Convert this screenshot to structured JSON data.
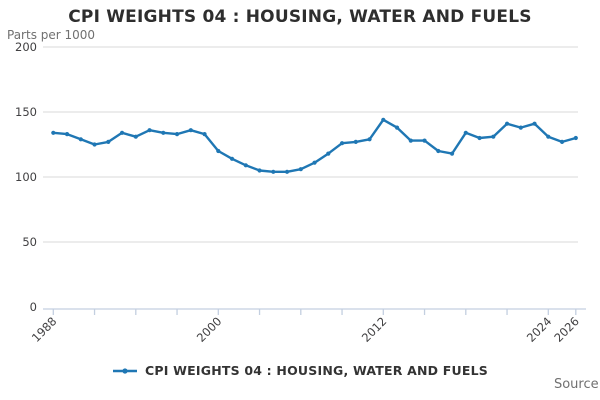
{
  "page": {
    "title": "CPI WEIGHTS 04 : HOUSING, WATER AND FUELS",
    "unit_label": "Parts per 1000",
    "legend_label": "CPI WEIGHTS 04 : HOUSING, WATER AND FUELS",
    "source_label": "Source:"
  },
  "colors": {
    "line": "#1f77b4",
    "grid": "#d9d9d9",
    "axis": "#c3cfe0",
    "title_text": "#2e2e2e",
    "tick_text": "#414042",
    "muted_text": "#707070"
  },
  "chart_data": {
    "type": "line",
    "title": "CPI WEIGHTS 04 : HOUSING, WATER AND FUELS",
    "subtitle_unit": "Parts per 1000",
    "series_name": "CPI WEIGHTS 04 : HOUSING, WATER AND FUELS",
    "x": [
      1988,
      1989,
      1990,
      1991,
      1992,
      1993,
      1994,
      1995,
      1996,
      1997,
      1998,
      1999,
      2000,
      2001,
      2002,
      2003,
      2004,
      2005,
      2006,
      2007,
      2008,
      2009,
      2010,
      2011,
      2012,
      2013,
      2014,
      2015,
      2016,
      2017,
      2018,
      2019,
      2020,
      2021,
      2022,
      2023,
      2024,
      2025,
      2026
    ],
    "values": [
      134,
      133,
      129,
      125,
      127,
      134,
      131,
      136,
      134,
      133,
      136,
      133,
      120,
      114,
      109,
      105,
      104,
      104,
      106,
      111,
      118,
      126,
      127,
      129,
      144,
      138,
      128,
      128,
      120,
      118,
      134,
      130,
      131,
      141,
      138,
      141,
      131,
      127,
      130
    ],
    "ylim": [
      0,
      200
    ],
    "y_ticks": [
      0,
      50,
      100,
      150,
      200
    ],
    "x_ticks": [
      1988,
      1991,
      1994,
      1997,
      2000,
      2003,
      2006,
      2009,
      2012,
      2015,
      2018,
      2021,
      2024,
      2026
    ],
    "x_labeled_ticks": [
      1988,
      2000,
      2012,
      2024,
      2026
    ],
    "xlabel": "",
    "ylabel": "Parts per 1000",
    "grid": "horizontal",
    "legend_position": "bottom",
    "marker": "dot"
  }
}
